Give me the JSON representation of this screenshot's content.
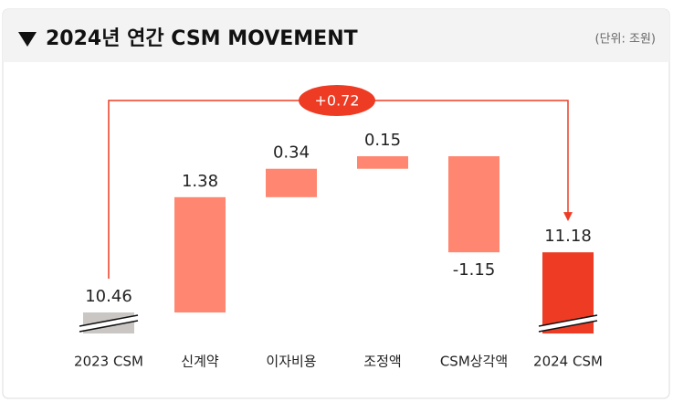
{
  "chart_data": {
    "type": "waterfall",
    "title": "2024년 연간 CSM MOVEMENT",
    "unit": "(단위: 조원)",
    "annotation": "+0.72",
    "categories": [
      "2023 CSM",
      "신계약",
      "이자비용",
      "조정액",
      "CSM상각액",
      "2024 CSM"
    ],
    "values": [
      10.46,
      1.38,
      0.34,
      0.15,
      -1.15,
      11.18
    ],
    "totals": [
      true,
      false,
      false,
      false,
      false,
      true
    ],
    "colors": {
      "start": "#c9c6c3",
      "delta": "#ff8670",
      "end": "#ee3b24",
      "annotation": "#ee3b24"
    }
  }
}
